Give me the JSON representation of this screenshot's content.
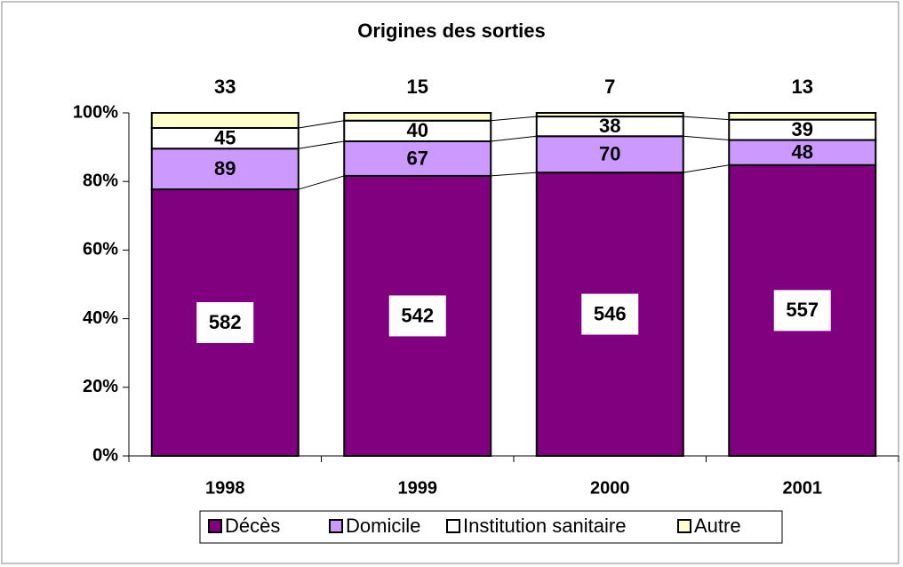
{
  "chart_data": {
    "type": "bar",
    "stacked_percent": true,
    "title": "Origines des sorties",
    "categories": [
      "1998",
      "1999",
      "2000",
      "2001"
    ],
    "series": [
      {
        "name": "Décès",
        "color": "#800080",
        "label_color": "#993366",
        "values": [
          582,
          542,
          546,
          557
        ]
      },
      {
        "name": "Domicile",
        "color": "#cc99ff",
        "values": [
          89,
          67,
          70,
          48
        ]
      },
      {
        "name": "Institution sanitaire",
        "color": "#ffffff",
        "values": [
          45,
          40,
          38,
          39
        ]
      },
      {
        "name": "Autre",
        "color": "#ffffcc",
        "values": [
          33,
          15,
          7,
          13
        ]
      }
    ],
    "ylim": [
      0,
      100
    ],
    "yticks": [
      {
        "value": 0,
        "label": "0%"
      },
      {
        "value": 20,
        "label": "20%"
      },
      {
        "value": 40,
        "label": "40%"
      },
      {
        "value": 60,
        "label": "60%"
      },
      {
        "value": 80,
        "label": "80%"
      },
      {
        "value": 100,
        "label": "100%"
      }
    ],
    "legend": "bottom"
  }
}
